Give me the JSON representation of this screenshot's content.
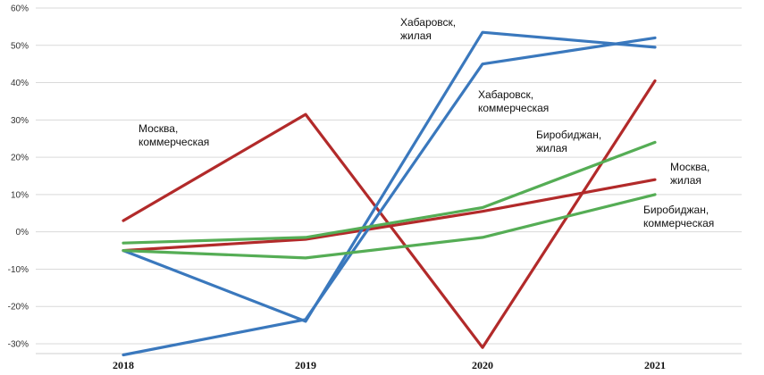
{
  "chart_data": {
    "type": "line",
    "title": "",
    "xlabel": "",
    "ylabel": "",
    "categories": [
      "2018",
      "2019",
      "2020",
      "2021"
    ],
    "ylim": [
      -30,
      60
    ],
    "yticks": [
      -30,
      -20,
      -10,
      0,
      10,
      20,
      30,
      40,
      50,
      60
    ],
    "ytick_labels": [
      "-30%",
      "-20%",
      "-10%",
      "0%",
      "10%",
      "20%",
      "30%",
      "40%",
      "50%",
      "60%"
    ],
    "grid": true,
    "legend": "none",
    "series": [
      {
        "name": "Москва, коммерческая",
        "color": "#b22a2a",
        "values": [
          3,
          31.5,
          -31,
          40.5
        ]
      },
      {
        "name": "Москва, жилая",
        "color": "#b22a2a",
        "values": [
          -5,
          -2,
          5.5,
          14
        ]
      },
      {
        "name": "Хабаровск, жилая",
        "color": "#3a78bd",
        "values": [
          -5,
          -24,
          53.5,
          49.5
        ]
      },
      {
        "name": "Хабаровск, коммерческая",
        "color": "#3a78bd",
        "values": [
          -33,
          -23.5,
          45,
          52
        ]
      },
      {
        "name": "Биробиджан, жилая",
        "color": "#55ad55",
        "values": [
          -3,
          -1.5,
          6.5,
          24
        ]
      },
      {
        "name": "Биробиджан, коммерческая",
        "color": "#55ad55",
        "values": [
          -5,
          -7,
          -1.5,
          10
        ]
      }
    ],
    "annotations": [
      {
        "series": 0,
        "lines": [
          "Москва,",
          "коммерческая"
        ]
      },
      {
        "series": 1,
        "lines": [
          "Москва,",
          "жилая"
        ]
      },
      {
        "series": 2,
        "lines": [
          "Хабаровск,",
          "жилая"
        ]
      },
      {
        "series": 3,
        "lines": [
          "Хабаровск,",
          "коммерческая"
        ]
      },
      {
        "series": 4,
        "lines": [
          "Биробиджан,",
          "жилая"
        ]
      },
      {
        "series": 5,
        "lines": [
          "Биробиджан,",
          "коммерческая"
        ]
      }
    ]
  }
}
